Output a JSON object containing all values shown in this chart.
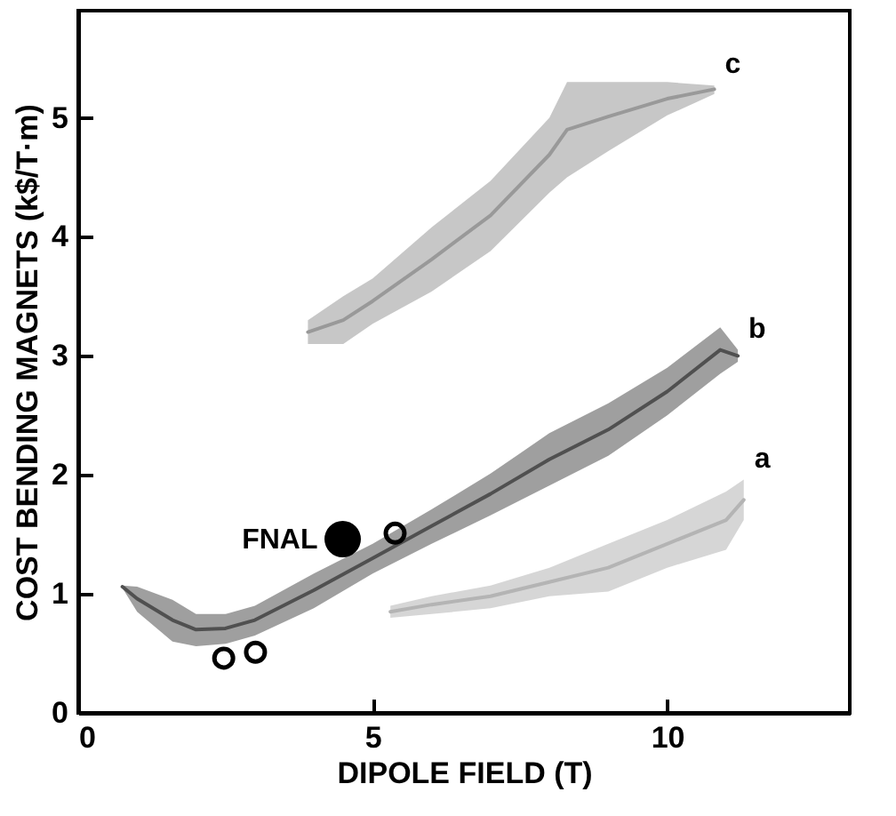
{
  "chart_data": {
    "type": "line",
    "xlabel": "DIPOLE FIELD (T)",
    "ylabel": "COST BENDING MAGNETS (k$/T·m)",
    "xlim": [
      0,
      13.1
    ],
    "xticks": [
      0,
      5,
      10
    ],
    "ylim": [
      0,
      5.9
    ],
    "yticks": [
      0,
      1,
      2,
      3,
      4,
      5
    ],
    "grid": false,
    "series": [
      {
        "name": "c",
        "color": "#999999",
        "x": [
          3.9,
          4.5,
          5,
          6,
          7,
          8,
          8.3,
          9,
          10,
          10.8
        ],
        "values": [
          3.2,
          3.3,
          3.46,
          3.81,
          4.18,
          4.69,
          4.9,
          5.01,
          5.16,
          5.24
        ],
        "upper": [
          3.3,
          3.5,
          3.65,
          4.08,
          4.47,
          5.0,
          5.3,
          5.3,
          5.3,
          5.27
        ],
        "lower": [
          3.1,
          3.1,
          3.27,
          3.54,
          3.88,
          4.37,
          4.5,
          4.72,
          5.02,
          5.2
        ]
      },
      {
        "name": "b",
        "color": "#505050",
        "x": [
          0.75,
          1,
          1.6,
          2,
          2.5,
          3,
          4,
          5,
          6,
          7,
          8,
          9,
          10,
          10.9,
          11.2
        ],
        "values": [
          1.06,
          0.96,
          0.78,
          0.7,
          0.71,
          0.78,
          1.03,
          1.3,
          1.57,
          1.84,
          2.13,
          2.38,
          2.7,
          3.05,
          3.0
        ],
        "upper": [
          1.07,
          1.06,
          0.95,
          0.83,
          0.83,
          0.9,
          1.17,
          1.42,
          1.71,
          2.01,
          2.35,
          2.6,
          2.9,
          3.24,
          3.05
        ],
        "lower": [
          1.05,
          0.85,
          0.6,
          0.56,
          0.58,
          0.65,
          0.88,
          1.17,
          1.42,
          1.66,
          1.91,
          2.16,
          2.5,
          2.85,
          2.95
        ]
      },
      {
        "name": "a",
        "color": "#b4b4b4",
        "x": [
          5.3,
          6,
          7,
          8,
          9,
          10,
          11,
          11.3
        ],
        "values": [
          0.85,
          0.91,
          0.98,
          1.1,
          1.22,
          1.42,
          1.62,
          1.79
        ],
        "upper": [
          0.9,
          0.98,
          1.07,
          1.22,
          1.42,
          1.62,
          1.86,
          1.96
        ],
        "lower": [
          0.8,
          0.83,
          0.88,
          0.98,
          1.02,
          1.22,
          1.37,
          1.62
        ]
      },
      {
        "name": "FNAL",
        "type": "scatter",
        "color": "#000000",
        "marker": "circle",
        "x": [
          4.49
        ],
        "values": [
          1.46
        ]
      },
      {
        "type": "scatter",
        "color": "#000000",
        "marker": "circle",
        "x": [
          2.47,
          3.01,
          5.38
        ],
        "values": [
          0.46,
          0.51,
          1.51
        ]
      }
    ]
  }
}
